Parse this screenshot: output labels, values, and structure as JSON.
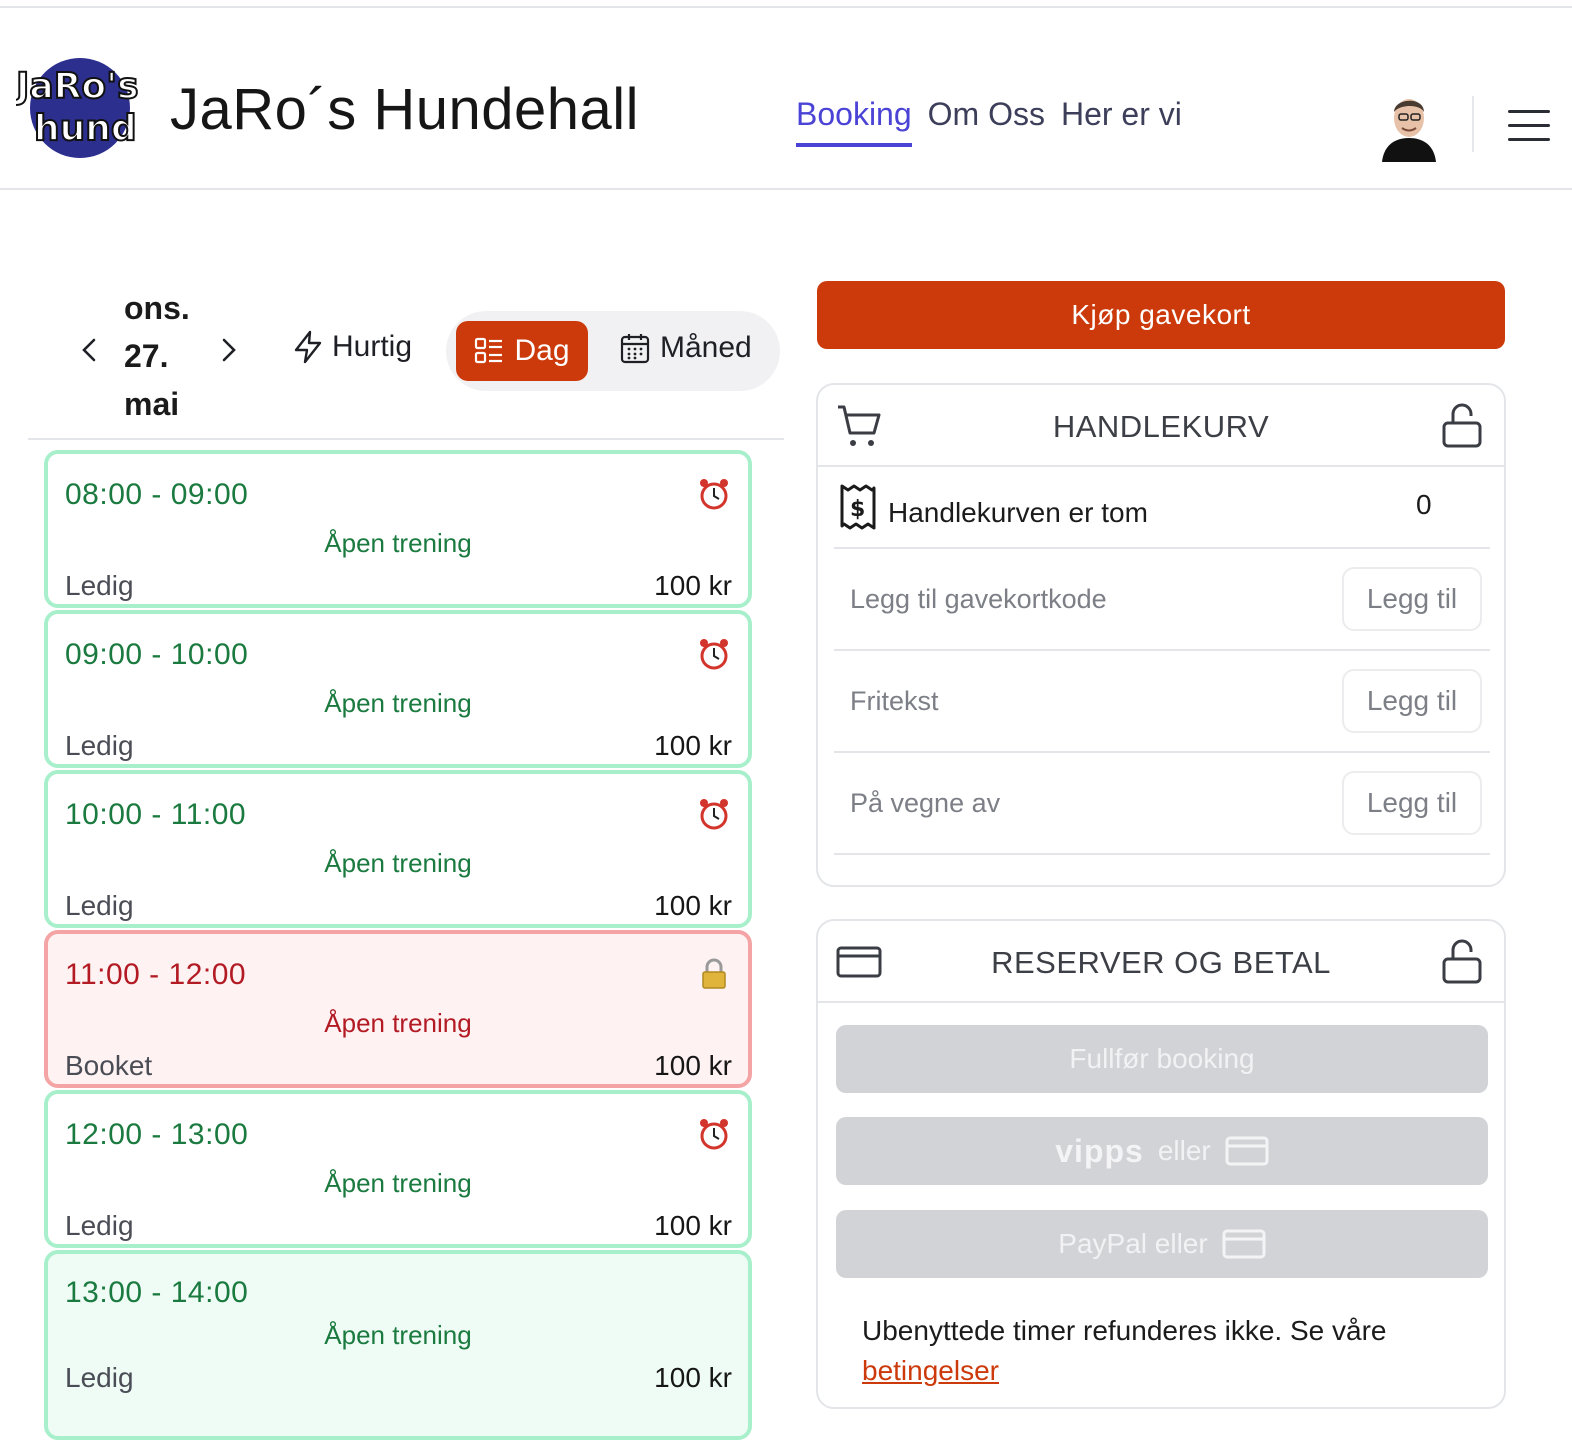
{
  "header": {
    "logo_text_top": "JaRo's",
    "logo_text_bottom": "hund",
    "site_title": "JaRo´s Hundehall",
    "nav": [
      {
        "label": "Booking",
        "active": true
      },
      {
        "label": "Om Oss",
        "active": false
      },
      {
        "label": "Her er vi",
        "active": false
      }
    ]
  },
  "toolbar": {
    "date_line1": "ons.",
    "date_line2": "27.",
    "date_line3": "mai",
    "quick_label": "Hurtig",
    "day_label": "Dag",
    "month_label": "Måned"
  },
  "slots": [
    {
      "time": "08:00 - 09:00",
      "activity": "Åpen trening",
      "status": "Ledig",
      "price": "100 kr",
      "icon": "alarm-clock-icon"
    },
    {
      "time": "09:00 - 10:00",
      "activity": "Åpen trening",
      "status": "Ledig",
      "price": "100 kr",
      "icon": "alarm-clock-icon"
    },
    {
      "time": "10:00 - 11:00",
      "activity": "Åpen trening",
      "status": "Ledig",
      "price": "100 kr",
      "icon": "alarm-clock-icon"
    },
    {
      "time": "11:00 - 12:00",
      "activity": "Åpen trening",
      "status": "Booket",
      "price": "100 kr",
      "icon": "padlock-icon"
    },
    {
      "time": "12:00 - 13:00",
      "activity": "Åpen trening",
      "status": "Ledig",
      "price": "100 kr",
      "icon": "alarm-clock-icon"
    },
    {
      "time": "13:00 - 14:00",
      "activity": "Åpen trening",
      "status": "Ledig",
      "price": "100 kr",
      "icon": ""
    }
  ],
  "gift_card_button": "Kjøp gavekort",
  "cart": {
    "title": "HANDLEKURV",
    "empty_text": "Handlekurven er tom",
    "count": "0",
    "inputs": [
      {
        "placeholder": "Legg til gavekortkode",
        "button": "Legg til"
      },
      {
        "placeholder": "Fritekst",
        "button": "Legg til"
      },
      {
        "placeholder": "På vegne av",
        "button": "Legg til"
      }
    ]
  },
  "payment": {
    "title": "RESERVER OG BETAL",
    "complete_button": "Fullfør booking",
    "vipps_logo": "vipps",
    "vipps_suffix": "eller",
    "paypal_label": "PayPal eller",
    "terms_text": "Ubenyttede timer refunderes ikke. Se våre",
    "terms_link": "betingelser"
  },
  "colors": {
    "accent": "#cc3a0b",
    "nav_active": "#4b43d6",
    "available_green": "#1b7a3f",
    "booked_red": "#b31b24"
  }
}
